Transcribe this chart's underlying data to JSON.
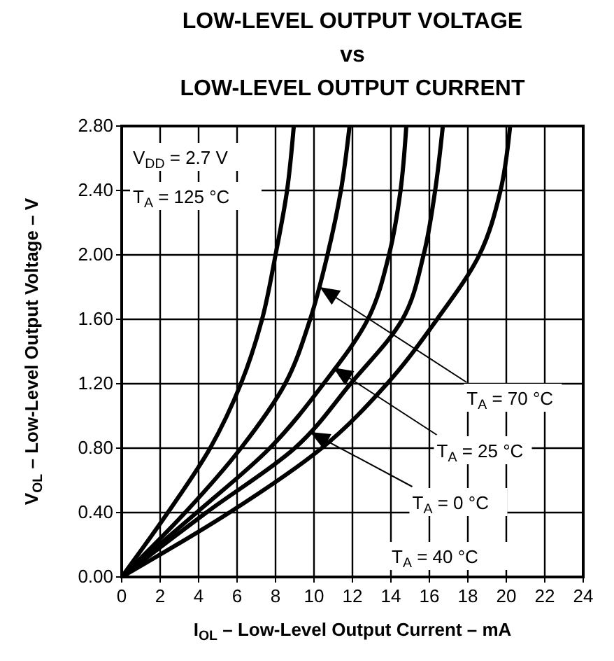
{
  "chart_data": {
    "type": "line",
    "title": "LOW-LEVEL OUTPUT VOLTAGE\nvs\nLOW-LEVEL OUTPUT CURRENT",
    "xlabel": "I$_{OL}$ – Low-Level Output Current  – mA",
    "ylabel": "V$_{OL}$ – Low-Level Output Voltage – V",
    "series": [
      {
        "color": "#000000",
        "x": [
          0,
          2.4,
          4.6,
          6.2,
          7.3,
          8.0,
          8.6,
          8.95
        ],
        "values": [
          0,
          0.4,
          0.8,
          1.2,
          1.6,
          2.0,
          2.4,
          2.8
        ]
      },
      {
        "color": "#000000",
        "x": [
          0,
          3.3,
          6.2,
          8.5,
          9.8,
          10.7,
          11.4,
          11.85
        ],
        "values": [
          0,
          0.4,
          0.8,
          1.2,
          1.6,
          2.0,
          2.4,
          2.8
        ]
      },
      {
        "color": "#000000",
        "x": [
          0,
          3.9,
          7.7,
          10.5,
          12.8,
          13.9,
          14.5,
          14.8
        ],
        "values": [
          0,
          0.4,
          0.8,
          1.2,
          1.6,
          2.0,
          2.4,
          2.8
        ]
      },
      {
        "color": "#000000",
        "x": [
          0,
          4.4,
          9.0,
          11.9,
          14.6,
          15.7,
          16.3,
          16.7
        ],
        "values": [
          0,
          0.4,
          0.8,
          1.2,
          1.6,
          2.0,
          2.4,
          2.8
        ]
      },
      {
        "color": "#000000",
        "x": [
          0,
          5.6,
          10.4,
          13.8,
          16.4,
          18.6,
          19.7,
          20.2
        ],
        "values": [
          0,
          0.4,
          0.8,
          1.2,
          1.6,
          2.0,
          2.4,
          2.8
        ]
      }
    ],
    "xlim": [
      0,
      24
    ],
    "xticks": [
      0,
      2,
      4,
      6,
      8,
      10,
      12,
      14,
      16,
      18,
      20,
      22,
      24
    ],
    "ylim": [
      0,
      2.8
    ],
    "yticks": [
      {
        "value": 0,
        "label": "0.00"
      },
      {
        "value": 0.4,
        "label": "0.40"
      },
      {
        "value": 0.8,
        "label": "0.80"
      },
      {
        "value": 1.2,
        "label": "1.20"
      },
      {
        "value": 1.6,
        "label": "1.60"
      },
      {
        "value": 2.0,
        "label": "2.00"
      },
      {
        "value": 2.4,
        "label": "2.40"
      },
      {
        "value": 2.8,
        "label": "2.80"
      }
    ],
    "grid": true,
    "line_style": "solid",
    "marker": "none",
    "annotations": [
      "V$_{DD}$ = 2.7 V",
      "T$_{A}$ = 125 °C",
      {
        "text": "T$_{A}$ = 70 °C",
        "x": 10.3,
        "y": 1.8
      },
      {
        "text": "T$_{A}$ = 25 °C",
        "x": 11.0,
        "y": 1.3
      },
      {
        "text": "T$_{A}$ = 0 °C",
        "x": 9.8,
        "y": 0.9
      },
      "T$_{A}$ = 40 °C"
    ]
  }
}
